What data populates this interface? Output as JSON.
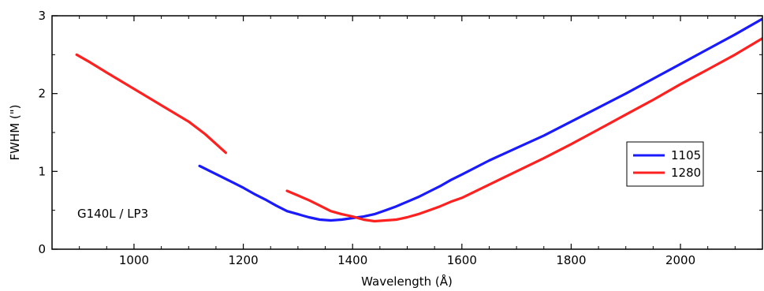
{
  "chart_data": {
    "type": "line",
    "xlabel": "Wavelength (Å)",
    "ylabel": "FWHM (\")",
    "xlim": [
      850,
      2150
    ],
    "ylim": [
      0,
      3
    ],
    "x_ticks": [
      1000,
      1200,
      1400,
      1600,
      1800,
      2000
    ],
    "x_tick_labels": [
      "1000",
      "1200",
      "1400",
      "1600",
      "1800",
      "2000"
    ],
    "y_ticks": [
      0,
      1,
      2,
      3
    ],
    "y_tick_labels": [
      "0",
      "1",
      "2",
      "3"
    ],
    "grid": false,
    "legend_position": "right",
    "annotation": "G140L / LP3",
    "series": [
      {
        "name": "1105",
        "color": "#1a1aff",
        "segments": [
          [
            [
              1120,
              1.07
            ],
            [
              1140,
              1.0
            ],
            [
              1160,
              0.93
            ],
            [
              1180,
              0.86
            ],
            [
              1200,
              0.79
            ],
            [
              1220,
              0.71
            ],
            [
              1240,
              0.64
            ],
            [
              1260,
              0.56
            ],
            [
              1280,
              0.49
            ],
            [
              1300,
              0.45
            ],
            [
              1320,
              0.41
            ],
            [
              1340,
              0.38
            ],
            [
              1360,
              0.37
            ],
            [
              1380,
              0.38
            ],
            [
              1400,
              0.4
            ],
            [
              1420,
              0.42
            ],
            [
              1440,
              0.45
            ],
            [
              1460,
              0.5
            ],
            [
              1480,
              0.55
            ],
            [
              1500,
              0.61
            ],
            [
              1520,
              0.67
            ],
            [
              1540,
              0.74
            ],
            [
              1560,
              0.81
            ],
            [
              1580,
              0.89
            ],
            [
              1600,
              0.96
            ],
            [
              1650,
              1.14
            ],
            [
              1700,
              1.3
            ],
            [
              1750,
              1.46
            ],
            [
              1800,
              1.64
            ],
            [
              1850,
              1.82
            ],
            [
              1900,
              2.0
            ],
            [
              1950,
              2.19
            ],
            [
              2000,
              2.38
            ],
            [
              2050,
              2.57
            ],
            [
              2100,
              2.76
            ],
            [
              2150,
              2.96
            ]
          ]
        ]
      },
      {
        "name": "1280",
        "color": "#ff2020",
        "segments": [
          [
            [
              895,
              2.5
            ],
            [
              920,
              2.4
            ],
            [
              950,
              2.27
            ],
            [
              1000,
              2.06
            ],
            [
              1050,
              1.85
            ],
            [
              1100,
              1.64
            ],
            [
              1130,
              1.48
            ],
            [
              1168,
              1.24
            ]
          ],
          [
            [
              1280,
              0.75
            ],
            [
              1300,
              0.69
            ],
            [
              1320,
              0.63
            ],
            [
              1340,
              0.56
            ],
            [
              1360,
              0.49
            ],
            [
              1380,
              0.45
            ],
            [
              1400,
              0.42
            ],
            [
              1420,
              0.38
            ],
            [
              1440,
              0.36
            ],
            [
              1460,
              0.37
            ],
            [
              1480,
              0.38
            ],
            [
              1500,
              0.41
            ],
            [
              1520,
              0.45
            ],
            [
              1540,
              0.5
            ],
            [
              1560,
              0.55
            ],
            [
              1580,
              0.61
            ],
            [
              1600,
              0.66
            ],
            [
              1650,
              0.83
            ],
            [
              1700,
              1.0
            ],
            [
              1750,
              1.17
            ],
            [
              1800,
              1.35
            ],
            [
              1850,
              1.54
            ],
            [
              1900,
              1.73
            ],
            [
              1950,
              1.92
            ],
            [
              2000,
              2.12
            ],
            [
              2050,
              2.31
            ],
            [
              2100,
              2.5
            ],
            [
              2150,
              2.71
            ]
          ]
        ]
      }
    ]
  }
}
